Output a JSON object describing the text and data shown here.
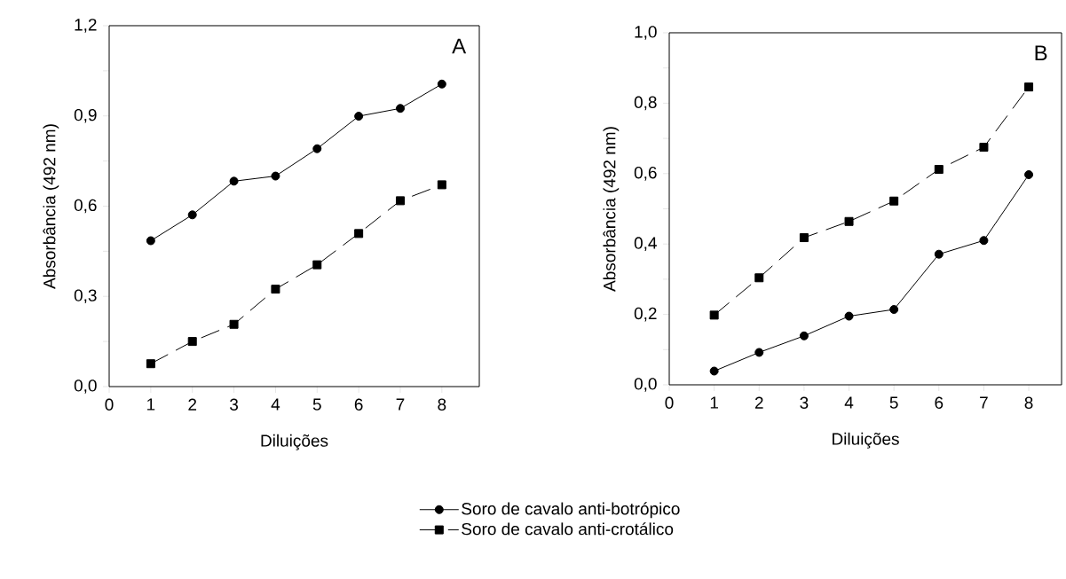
{
  "chart_data": [
    {
      "type": "line",
      "xlabel": "Diluições",
      "ylabel": "Absorbância (492 nm)",
      "annotations": [
        "A"
      ],
      "x": [
        1,
        2,
        3,
        4,
        5,
        6,
        7,
        8
      ],
      "series": [
        {
          "name": "Soro de cavalo anti-botrópico",
          "color": "#000000",
          "marker": "circle",
          "line_style": "solid",
          "values": [
            0.485,
            0.571,
            0.683,
            0.7,
            0.791,
            0.899,
            0.925,
            1.006
          ]
        },
        {
          "name": "Soro de cavalo anti-crotálico",
          "color": "#000000",
          "marker": "square",
          "line_style": "dashed",
          "values": [
            0.076,
            0.15,
            0.207,
            0.324,
            0.405,
            0.509,
            0.618,
            0.671
          ]
        }
      ],
      "xlim": [
        0,
        8.9
      ],
      "xticks": [
        0,
        1,
        2,
        3,
        4,
        5,
        6,
        7,
        8
      ],
      "ylim": [
        0,
        1.2
      ],
      "yticks": [
        {
          "value": 0,
          "label": "0,0"
        },
        {
          "value": 0.15,
          "label": null
        },
        {
          "value": 0.3,
          "label": "0,3"
        },
        {
          "value": 0.45,
          "label": null
        },
        {
          "value": 0.6,
          "label": "0,6"
        },
        {
          "value": 0.75,
          "label": null
        },
        {
          "value": 0.9,
          "label": "0,9"
        },
        {
          "value": 1.05,
          "label": null
        },
        {
          "value": 1.2,
          "label": "1,2"
        }
      ],
      "legend": "bottom",
      "grid": false
    },
    {
      "type": "line",
      "xlabel": "Diluições",
      "ylabel": "Absorbância (492 nm)",
      "annotations": [
        "B"
      ],
      "x": [
        1,
        2,
        3,
        4,
        5,
        6,
        7,
        8
      ],
      "series": [
        {
          "color": "#000000",
          "marker": "circle",
          "line_style": "solid",
          "values": [
            0.039,
            0.092,
            0.139,
            0.195,
            0.214,
            0.371,
            0.41,
            0.597
          ]
        },
        {
          "color": "#000000",
          "marker": "square",
          "line_style": "dashed",
          "values": [
            0.198,
            0.304,
            0.418,
            0.464,
            0.522,
            0.612,
            0.675,
            0.846
          ]
        }
      ],
      "xlim": [
        0,
        8.73
      ],
      "xticks": [
        0,
        1,
        2,
        3,
        4,
        5,
        6,
        7,
        8
      ],
      "ylim": [
        0,
        1.0
      ],
      "yticks": [
        {
          "value": 0,
          "label": "0,0"
        },
        {
          "value": 0.1,
          "label": null
        },
        {
          "value": 0.2,
          "label": "0,2"
        },
        {
          "value": 0.3,
          "label": null
        },
        {
          "value": 0.4,
          "label": "0,4"
        },
        {
          "value": 0.5,
          "label": null
        },
        {
          "value": 0.6,
          "label": "0,6"
        },
        {
          "value": 0.7,
          "label": null
        },
        {
          "value": 0.8,
          "label": "0,8"
        },
        {
          "value": 0.9,
          "label": null
        },
        {
          "value": 1.0,
          "label": "1,0"
        }
      ],
      "grid": false
    }
  ]
}
